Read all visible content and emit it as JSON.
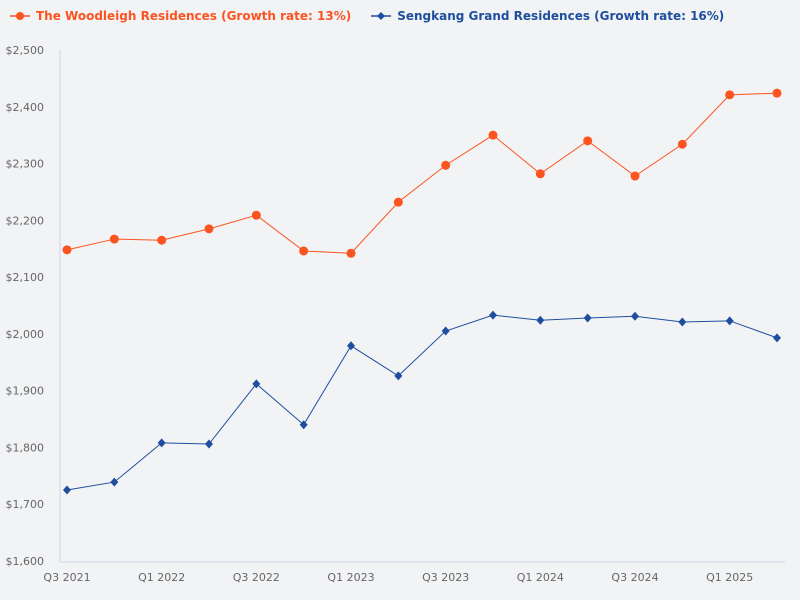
{
  "chart_data": {
    "type": "line",
    "title": "",
    "xlabel": "",
    "ylabel": "",
    "categories": [
      "Q3 2021",
      "Q4 2021",
      "Q1 2022",
      "Q2 2022",
      "Q3 2022",
      "Q4 2022",
      "Q1 2023",
      "Q2 2023",
      "Q3 2023",
      "Q4 2023",
      "Q1 2024",
      "Q2 2024",
      "Q3 2024",
      "Q4 2024",
      "Q1 2025",
      "Q2 2025"
    ],
    "x_tick_labels": [
      "Q3 2021",
      "Q1 2022",
      "Q3 2022",
      "Q1 2023",
      "Q3 2023",
      "Q1 2024",
      "Q3 2024",
      "Q1 2025"
    ],
    "y_tick_labels": [
      "$1,600",
      "$1,700",
      "$1,800",
      "$1,900",
      "$2,000",
      "$2,100",
      "$2,200",
      "$2,300",
      "$2,400",
      "$2,500"
    ],
    "ylim": [
      1600,
      2500
    ],
    "grid": false,
    "legend_position": "top-left",
    "series": [
      {
        "name": "The Woodleigh Residences (Growth rate: 13%)",
        "color": "#fc5421",
        "marker": "circle",
        "values": [
          2148,
          2167,
          2165,
          2185,
          2209,
          2146,
          2142,
          2232,
          2297,
          2350,
          2282,
          2340,
          2278,
          2334,
          2421,
          2424
        ]
      },
      {
        "name": "Sengkang Grand Residences (Growth rate: 16%)",
        "color": "#1f4e9e",
        "marker": "diamond",
        "values": [
          1725,
          1739,
          1808,
          1806,
          1912,
          1840,
          1979,
          1926,
          2005,
          2033,
          2024,
          2028,
          2031,
          2021,
          2023,
          1993
        ]
      }
    ]
  }
}
